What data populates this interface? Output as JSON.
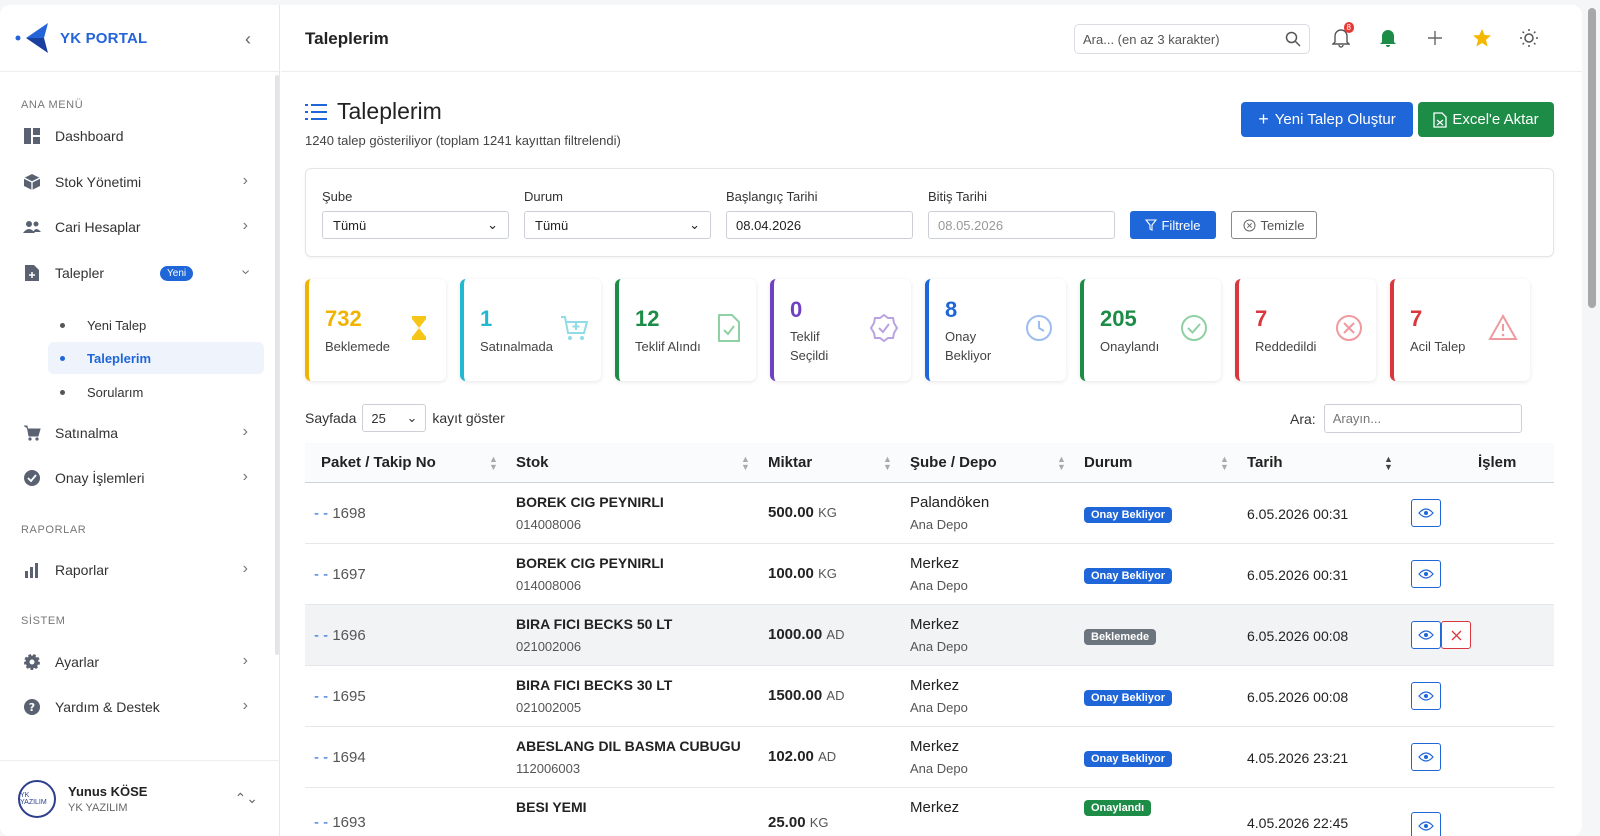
{
  "brand": {
    "name": "YK PORTAL"
  },
  "sidebar": {
    "section_main": "ANA MENÜ",
    "section_reports": "RAPORLAR",
    "section_system": "SİSTEM",
    "items": [
      {
        "label": "Dashboard",
        "icon": "dashboard-icon"
      },
      {
        "label": "Stok Yönetimi",
        "icon": "box-icon"
      },
      {
        "label": "Cari Hesaplar",
        "icon": "users-icon"
      },
      {
        "label": "Talepler",
        "icon": "file-plus-icon",
        "badge": "Yeni"
      },
      {
        "label": "Satınalma",
        "icon": "cart-icon"
      },
      {
        "label": "Onay İşlemleri",
        "icon": "check-circle-icon"
      },
      {
        "label": "Raporlar",
        "icon": "bar-chart-icon"
      },
      {
        "label": "Ayarlar",
        "icon": "gear-icon"
      },
      {
        "label": "Yardım & Destek",
        "icon": "help-icon"
      }
    ],
    "sub_items": [
      "Yeni Talep",
      "Taleplerim",
      "Sorularım"
    ],
    "user": {
      "name": "Yunus KÖSE",
      "org": "YK YAZILIM",
      "avatar_text": "YK YAZILIM"
    }
  },
  "header": {
    "title": "Taleplerim",
    "search_placeholder": "Ara... (en az 3 karakter)",
    "notification_count": "8"
  },
  "page": {
    "title": "Taleplerim",
    "subtitle": "1240 talep gösteriliyor (toplam 1241 kayıttan filtrelendi)",
    "btn_new": "Yeni Talep Oluştur",
    "btn_excel": "Excel'e Aktar"
  },
  "filters": {
    "branch_label": "Şube",
    "branch_value": "Tümü",
    "status_label": "Durum",
    "status_value": "Tümü",
    "start_label": "Başlangıç Tarihi",
    "start_value": "08.04.2026",
    "end_label": "Bitiş Tarihi",
    "end_value": "08.05.2026",
    "btn_filter": "Filtrele",
    "btn_clear": "Temizle"
  },
  "stats": [
    {
      "value": "732",
      "label": "Beklemede",
      "color": "#f0b400",
      "icon": "hourglass-icon"
    },
    {
      "value": "1",
      "label": "Satınalmada",
      "color": "#22b8cf",
      "icon": "cart-plus-icon"
    },
    {
      "value": "12",
      "label": "Teklif Alındı",
      "color": "#1d8c47",
      "icon": "file-check-icon"
    },
    {
      "value": "0",
      "label": "Teklif Seçildi",
      "color": "#6f42c1",
      "icon": "badge-check-icon"
    },
    {
      "value": "8",
      "label": "Onay Bekliyor",
      "color": "#1f66d8",
      "icon": "clock-icon"
    },
    {
      "value": "205",
      "label": "Onaylandı",
      "color": "#1d8c47",
      "icon": "check-circle-icon"
    },
    {
      "value": "7",
      "label": "Reddedildi",
      "color": "#d9363e",
      "icon": "x-circle-icon"
    },
    {
      "value": "7",
      "label": "Acil Talep",
      "color": "#d9363e",
      "icon": "warning-icon"
    }
  ],
  "table": {
    "len_prefix": "Sayfada",
    "len_value": "25",
    "len_suffix": "kayıt göster",
    "search_label": "Ara:",
    "search_placeholder": "Arayın...",
    "columns": [
      "Paket / Takip No",
      "Stok",
      "Miktar",
      "Şube / Depo",
      "Durum",
      "Tarih",
      "İşlem"
    ],
    "rows": [
      {
        "pk_dash": "- -",
        "pk": "1698",
        "stock": "BOREK CIG PEYNIRLI",
        "code": "014008006",
        "qty": "500.00",
        "unit": "KG",
        "branch": "Palandöken",
        "depot": "Ana Depo",
        "status": "Onay Bekliyor",
        "status_color": "#1f66d8",
        "date": "6.05.2026 00:31",
        "deletable": false
      },
      {
        "pk_dash": "- -",
        "pk": "1697",
        "stock": "BOREK CIG PEYNIRLI",
        "code": "014008006",
        "qty": "100.00",
        "unit": "KG",
        "branch": "Merkez",
        "depot": "Ana Depo",
        "status": "Onay Bekliyor",
        "status_color": "#1f66d8",
        "date": "6.05.2026 00:31",
        "deletable": false
      },
      {
        "pk_dash": "- -",
        "pk": "1696",
        "stock": "BIRA FICI BECKS 50 LT",
        "code": "021002006",
        "qty": "1000.00",
        "unit": "AD",
        "branch": "Merkez",
        "depot": "Ana Depo",
        "status": "Beklemede",
        "status_color": "#6c757d",
        "date": "6.05.2026 00:08",
        "deletable": true
      },
      {
        "pk_dash": "- -",
        "pk": "1695",
        "stock": "BIRA FICI BECKS 30 LT",
        "code": "021002005",
        "qty": "1500.00",
        "unit": "AD",
        "branch": "Merkez",
        "depot": "Ana Depo",
        "status": "Onay Bekliyor",
        "status_color": "#1f66d8",
        "date": "6.05.2026 00:08",
        "deletable": false
      },
      {
        "pk_dash": "- -",
        "pk": "1694",
        "stock": "ABESLANG DIL BASMA CUBUGU",
        "code": "112006003",
        "qty": "102.00",
        "unit": "AD",
        "branch": "Merkez",
        "depot": "Ana Depo",
        "status": "Onay Bekliyor",
        "status_color": "#1f66d8",
        "date": "4.05.2026 23:21",
        "deletable": false
      },
      {
        "pk_dash": "- -",
        "pk": "1693",
        "stock": "BESI YEMI",
        "code": "",
        "qty": "25.00",
        "unit": "KG",
        "branch": "Merkez",
        "depot": "",
        "status": "Onaylandı",
        "status_color": "#1d8c47",
        "date": "4.05.2026 22:45",
        "deletable": false
      }
    ]
  }
}
